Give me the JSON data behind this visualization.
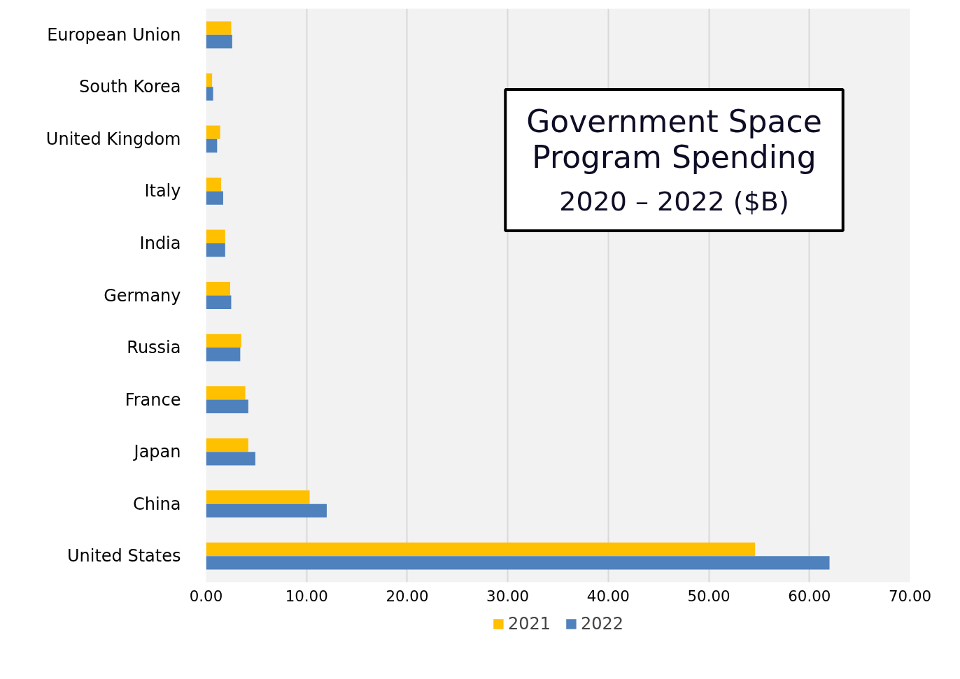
{
  "chart_data": {
    "type": "bar",
    "orientation": "horizontal",
    "title": "Government Space Program Spending",
    "subtitle": "2020 – 2022 ($B)",
    "categories": [
      "European Union",
      "South Korea",
      "United Kingdom",
      "Italy",
      "India",
      "Germany",
      "Russia",
      "France",
      "Japan",
      "China",
      "United States"
    ],
    "series": [
      {
        "name": "2021",
        "color": "#ffc000",
        "values": [
          2.5,
          0.6,
          1.4,
          1.5,
          1.9,
          2.4,
          3.5,
          3.9,
          4.2,
          10.3,
          54.6
        ]
      },
      {
        "name": "2022",
        "color": "#4f81bd",
        "values": [
          2.6,
          0.7,
          1.1,
          1.7,
          1.9,
          2.5,
          3.4,
          4.2,
          4.9,
          12.0,
          62.0
        ]
      }
    ],
    "xlim": [
      0,
      70
    ],
    "xticks": [
      {
        "value": 0,
        "label": "0.00"
      },
      {
        "value": 10,
        "label": "10.00"
      },
      {
        "value": 20,
        "label": "20.00"
      },
      {
        "value": 30,
        "label": "30.00"
      },
      {
        "value": 40,
        "label": "40.00"
      },
      {
        "value": 50,
        "label": "50.00"
      },
      {
        "value": 60,
        "label": "60.00"
      },
      {
        "value": 70,
        "label": "70.00"
      }
    ],
    "grid": "x",
    "legend": "bottom"
  }
}
